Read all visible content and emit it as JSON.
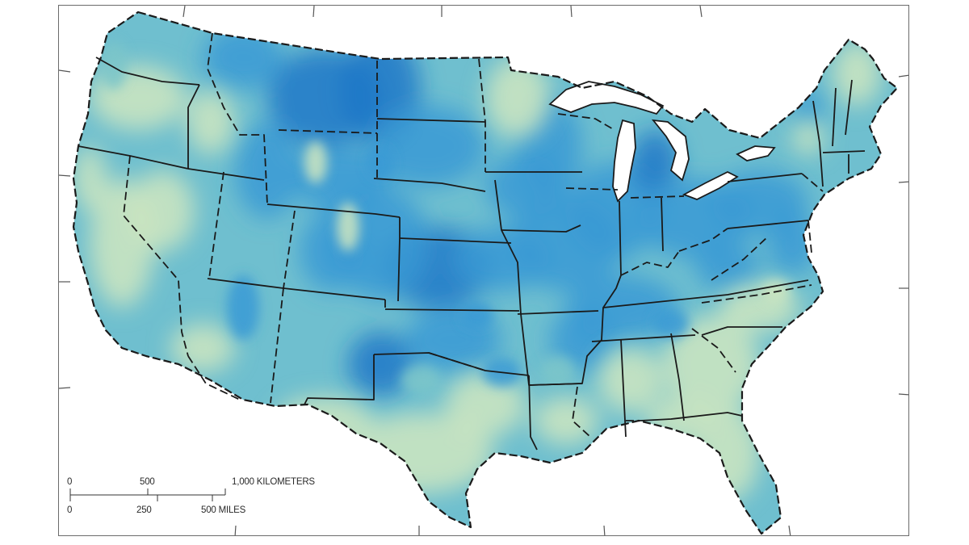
{
  "map": {
    "colors": {
      "land_low": "#cfe6bf",
      "land_mid": "#7cc6c9",
      "land_high": "#3a9ad5",
      "land_peak": "#1f78c8",
      "border": "#1a1a1a",
      "water": "#ffffff"
    }
  },
  "scale": {
    "km_labels": [
      "0",
      "500",
      "1,000 KILOMETERS"
    ],
    "mile_labels": [
      "0",
      "250",
      "500 MILES"
    ]
  }
}
